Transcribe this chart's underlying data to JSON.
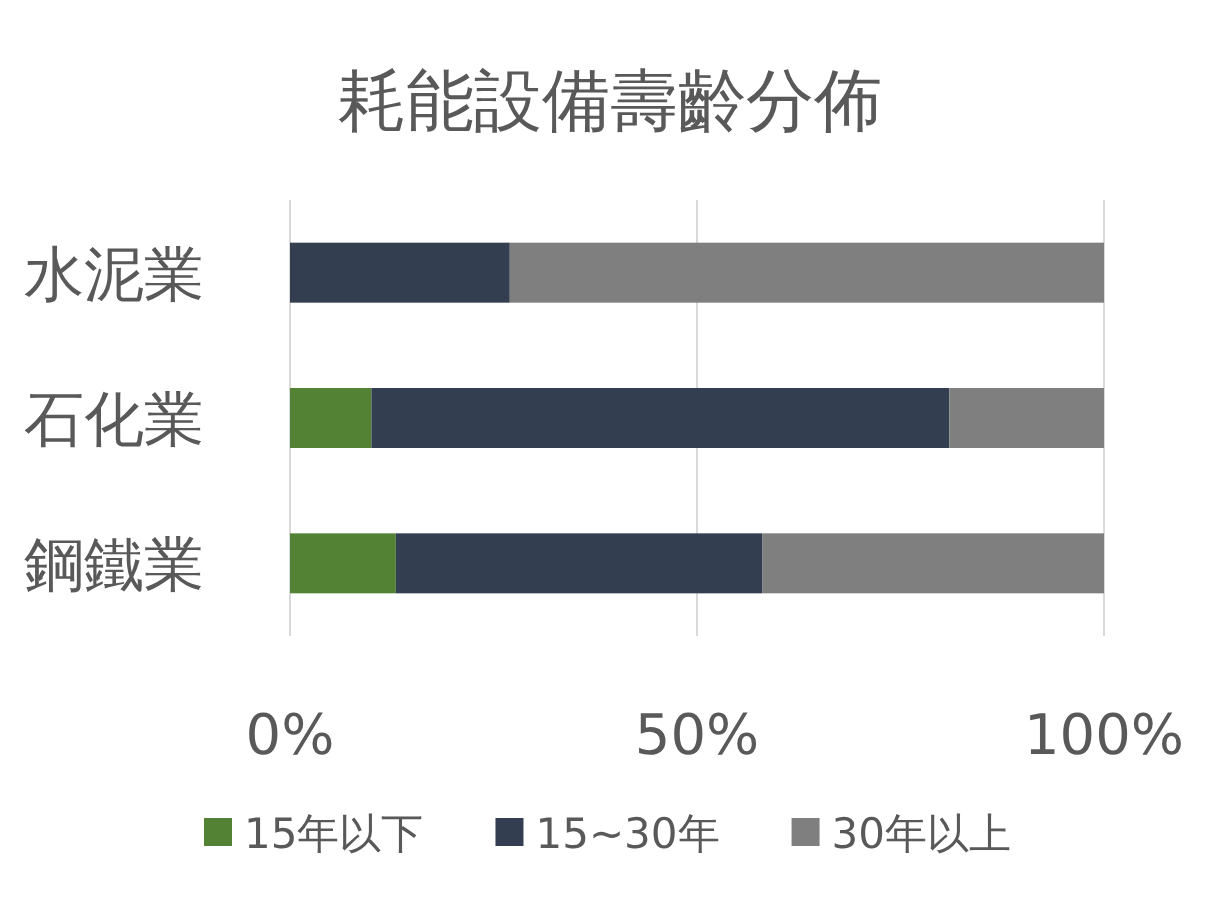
{
  "chart_data": {
    "type": "bar",
    "title": "耗能設備壽齡分佈",
    "orientation": "horizontal",
    "stacked": true,
    "categories": [
      "水泥業",
      "石化業",
      "鋼鐵業"
    ],
    "series": [
      {
        "name": "15年以下",
        "color": "#548235",
        "values": [
          0,
          10,
          13
        ]
      },
      {
        "name": "15~30年",
        "color": "#333f50",
        "values": [
          27,
          71,
          45
        ]
      },
      {
        "name": "30年以上",
        "color": "#7f7f7f",
        "values": [
          73,
          19,
          42
        ]
      }
    ],
    "xlim": [
      0,
      100
    ],
    "xticks": [
      {
        "value": 0,
        "label": "0%"
      },
      {
        "value": 50,
        "label": "50%"
      },
      {
        "value": 100,
        "label": "100%"
      }
    ],
    "grid": "x",
    "legend": "bottom"
  }
}
